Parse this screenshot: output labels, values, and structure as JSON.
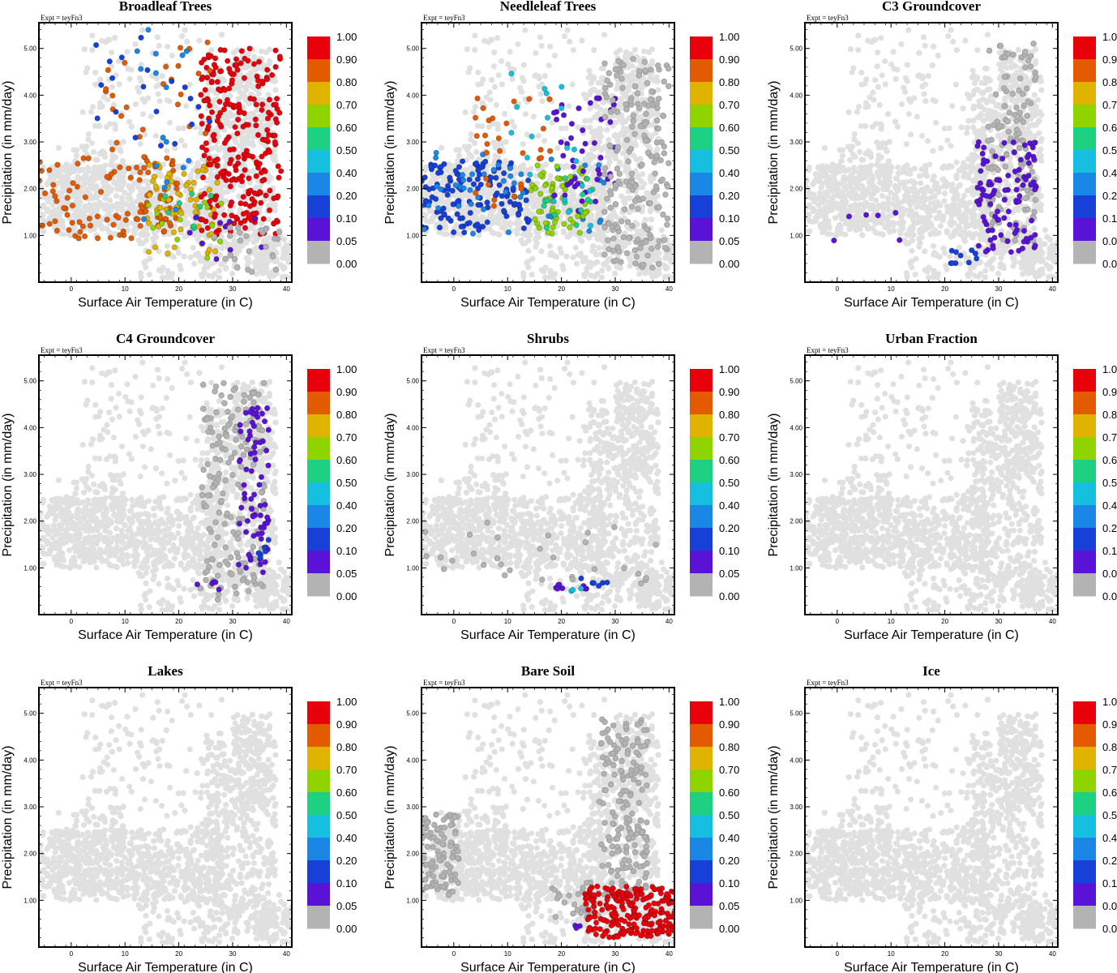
{
  "chart_data": {
    "type": "scatter",
    "experiment_label": "Expt = teyFn3",
    "xlabel": "Surface Air Temperature (in C)",
    "ylabel": "Precipitation (in mm/day)",
    "xlim": [
      -6,
      41
    ],
    "ylim": [
      0,
      5.55
    ],
    "xticks": [
      0,
      10,
      20,
      30,
      40
    ],
    "yticks": [
      1.0,
      2.0,
      3.0,
      4.0,
      5.0
    ],
    "yticklabels": [
      "1.00",
      "2.00",
      "3.00",
      "4.00",
      "5.00"
    ],
    "colorbar": {
      "labels": [
        "1.00",
        "0.90",
        "0.80",
        "0.70",
        "0.60",
        "0.50",
        "0.40",
        "0.20",
        "0.10",
        "0.05",
        "0.00"
      ],
      "colors": [
        "#e8000b",
        "#e35a00",
        "#e0b300",
        "#8fd400",
        "#1ed182",
        "#16bfe0",
        "#1a86e6",
        "#1640d8",
        "#5a12d6",
        "#b3b3b3"
      ],
      "background_color": "#e0e0e0"
    },
    "panels": [
      {
        "title": "Broadleaf Trees",
        "clusters": [
          {
            "level": 1,
            "n": 110,
            "x": [
              -6,
              20
            ],
            "y": [
              0.9,
              2.7
            ]
          },
          {
            "level": 2,
            "n": 70,
            "x": [
              14,
              28
            ],
            "y": [
              0.6,
              2.6
            ]
          },
          {
            "level": 0,
            "n": 260,
            "x": [
              24,
              39
            ],
            "y": [
              1.0,
              5.0
            ]
          },
          {
            "level": 1,
            "n": 25,
            "x": [
              6,
              26
            ],
            "y": [
              2.8,
              5.2
            ]
          },
          {
            "level": 7,
            "n": 20,
            "x": [
              4,
              26
            ],
            "y": [
              2.8,
              5.3
            ]
          },
          {
            "level": 6,
            "n": 18,
            "x": [
              12,
              24
            ],
            "y": [
              1.2,
              5.4
            ]
          },
          {
            "level": 3,
            "n": 15,
            "x": [
              14,
              28
            ],
            "y": [
              0.5,
              1.8
            ]
          },
          {
            "level": 4,
            "n": 8,
            "x": [
              16,
              26
            ],
            "y": [
              1.0,
              2.0
            ]
          },
          {
            "level": 8,
            "n": 10,
            "x": [
              22,
              36
            ],
            "y": [
              0.3,
              1.5
            ]
          },
          {
            "level": 9,
            "n": 25,
            "x": [
              26,
              39
            ],
            "y": [
              0.2,
              1.2
            ]
          }
        ]
      },
      {
        "title": "Needleleaf Trees",
        "clusters": [
          {
            "level": 7,
            "n": 130,
            "x": [
              -6,
              14
            ],
            "y": [
              1.0,
              2.6
            ]
          },
          {
            "level": 6,
            "n": 50,
            "x": [
              -6,
              28
            ],
            "y": [
              1.0,
              2.8
            ]
          },
          {
            "level": 3,
            "n": 60,
            "x": [
              14,
              25
            ],
            "y": [
              1.0,
              2.5
            ]
          },
          {
            "level": 1,
            "n": 30,
            "x": [
              4,
              18
            ],
            "y": [
              1.6,
              4.0
            ]
          },
          {
            "level": 8,
            "n": 45,
            "x": [
              18,
              30
            ],
            "y": [
              1.5,
              4.0
            ]
          },
          {
            "level": 4,
            "n": 15,
            "x": [
              14,
              26
            ],
            "y": [
              1.0,
              2.3
            ]
          },
          {
            "level": 5,
            "n": 20,
            "x": [
              10,
              26
            ],
            "y": [
              0.8,
              4.8
            ]
          },
          {
            "level": 9,
            "n": 200,
            "x": [
              28,
              40
            ],
            "y": [
              0.3,
              4.8
            ]
          }
        ]
      },
      {
        "title": "C3 Groundcover",
        "clusters": [
          {
            "level": 9,
            "n": 130,
            "x": [
              28,
              37
            ],
            "y": [
              0.8,
              5.2
            ]
          },
          {
            "level": 8,
            "n": 100,
            "x": [
              26,
              37
            ],
            "y": [
              0.6,
              3.0
            ]
          },
          {
            "level": 7,
            "n": 10,
            "x": [
              21,
              27
            ],
            "y": [
              0.4,
              0.7
            ]
          },
          {
            "level": 8,
            "n": 6,
            "x": [
              -6,
              12
            ],
            "y": [
              0.8,
              1.7
            ]
          }
        ]
      },
      {
        "title": "C4 Groundcover",
        "clusters": [
          {
            "level": 9,
            "n": 180,
            "x": [
              24,
              36
            ],
            "y": [
              0.3,
              5.0
            ]
          },
          {
            "level": 8,
            "n": 70,
            "x": [
              31,
              37
            ],
            "y": [
              0.9,
              4.5
            ]
          },
          {
            "level": 7,
            "n": 6,
            "x": [
              34,
              38
            ],
            "y": [
              1.2,
              1.7
            ]
          },
          {
            "level": 8,
            "n": 5,
            "x": [
              23,
              29
            ],
            "y": [
              0.5,
              0.7
            ]
          }
        ]
      },
      {
        "title": "Shrubs",
        "clusters": [
          {
            "level": 9,
            "n": 30,
            "x": [
              -6,
              38
            ],
            "y": [
              0.6,
              2.0
            ]
          },
          {
            "level": 8,
            "n": 8,
            "x": [
              19,
              25
            ],
            "y": [
              0.55,
              0.65
            ]
          },
          {
            "level": 7,
            "n": 6,
            "x": [
              23,
              29
            ],
            "y": [
              0.6,
              0.8
            ]
          },
          {
            "level": 5,
            "n": 3,
            "x": [
              21,
              24
            ],
            "y": [
              0.5,
              0.6
            ]
          }
        ]
      },
      {
        "title": "Urban Fraction",
        "clusters": []
      },
      {
        "title": "Lakes",
        "clusters": []
      },
      {
        "title": "Bare Soil",
        "clusters": [
          {
            "level": 9,
            "n": 100,
            "x": [
              -6,
              1
            ],
            "y": [
              1.1,
              2.9
            ]
          },
          {
            "level": 9,
            "n": 180,
            "x": [
              27,
              36
            ],
            "y": [
              1.0,
              4.9
            ]
          },
          {
            "level": 9,
            "n": 30,
            "x": [
              18,
              27
            ],
            "y": [
              0.6,
              1.5
            ]
          },
          {
            "level": 0,
            "n": 220,
            "x": [
              24,
              41
            ],
            "y": [
              0.2,
              1.3
            ]
          },
          {
            "level": 8,
            "n": 3,
            "x": [
              22,
              24
            ],
            "y": [
              0.4,
              0.6
            ]
          }
        ]
      },
      {
        "title": "Ice",
        "clusters": []
      }
    ]
  }
}
